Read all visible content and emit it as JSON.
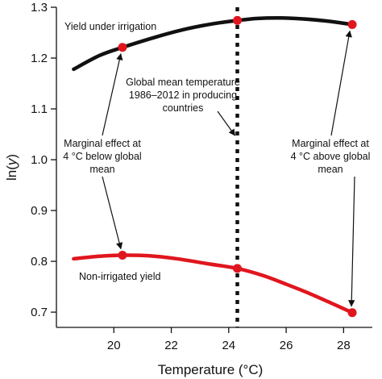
{
  "chart_data": {
    "type": "line",
    "xlabel": "Temperature (°C)",
    "ylabel_prefix": "ln(",
    "ylabel_var": "y",
    "ylabel_suffix": ")",
    "xlim": [
      18,
      29
    ],
    "ylim": [
      0.67,
      1.3
    ],
    "xticks": [
      20,
      22,
      24,
      26,
      28
    ],
    "yticks": [
      0.7,
      0.8,
      0.9,
      1.0,
      1.1,
      1.2,
      1.3
    ],
    "ytick_labels": [
      "0.7",
      "0.8",
      "0.9",
      "1.0",
      "1.1",
      "1.2",
      "1.3"
    ],
    "series": [
      {
        "name": "Yield under irrigation",
        "color": "#111111",
        "x": [
          18.6,
          19.5,
          20.3,
          21.5,
          22.5,
          23.5,
          24.3,
          25.0,
          25.8,
          26.6,
          27.4,
          28.3
        ],
        "values": [
          1.178,
          1.205,
          1.221,
          1.242,
          1.257,
          1.268,
          1.274,
          1.278,
          1.279,
          1.277,
          1.273,
          1.266
        ],
        "markers": [
          {
            "x": 20.3,
            "y": 1.221
          },
          {
            "x": 24.3,
            "y": 1.274
          },
          {
            "x": 28.3,
            "y": 1.266
          }
        ]
      },
      {
        "name": "Non-irrigated yield",
        "color": "#e0161e",
        "x": [
          18.6,
          19.5,
          20.3,
          21.2,
          22.2,
          23.3,
          24.3,
          25.2,
          26.0,
          26.8,
          27.6,
          28.3
        ],
        "values": [
          0.805,
          0.81,
          0.812,
          0.811,
          0.805,
          0.795,
          0.786,
          0.772,
          0.755,
          0.737,
          0.717,
          0.699
        ],
        "markers": [
          {
            "x": 20.3,
            "y": 0.812
          },
          {
            "x": 24.3,
            "y": 0.786
          },
          {
            "x": 28.3,
            "y": 0.699
          }
        ]
      }
    ],
    "vertical_line": {
      "x": 24.3
    },
    "annotations": {
      "global_mean": [
        "Global mean temperature",
        "1986–2012 in producing",
        "countries"
      ],
      "marginal_below": [
        "Marginal effect at",
        "4 °C below global",
        "mean"
      ],
      "marginal_above": [
        "Marginal effect at",
        "4 °C above global",
        "mean"
      ]
    },
    "colors": {
      "axis": "#111111",
      "irrigated": "#111111",
      "rainfed": "#e0161e",
      "marker": "#e0161e"
    }
  }
}
